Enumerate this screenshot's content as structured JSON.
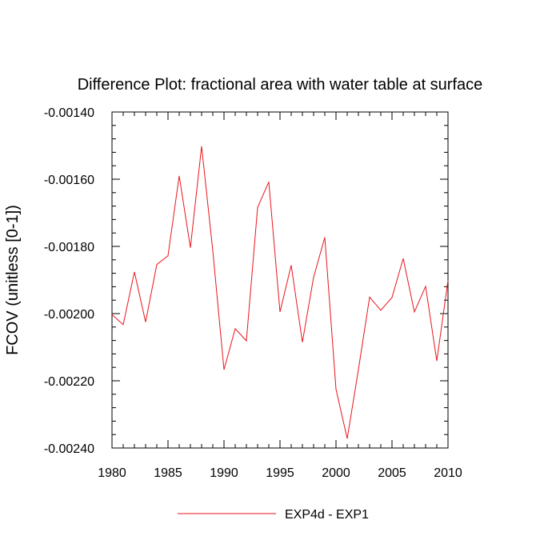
{
  "chart_data": {
    "type": "line",
    "title": "Difference Plot: fractional area with water table at surface",
    "xlabel": "",
    "ylabel": "FCOV  (unitless [0-1])",
    "xlim": [
      1980,
      2010
    ],
    "ylim": [
      -0.0024,
      -0.0014
    ],
    "x_ticks": [
      1980,
      1985,
      1990,
      1995,
      2000,
      2005,
      2010
    ],
    "x_tick_labels": [
      "1980",
      "1985",
      "1990",
      "1995",
      "2000",
      "2005",
      "2010"
    ],
    "y_ticks": [
      -0.0014,
      -0.0016,
      -0.0018,
      -0.002,
      -0.0022,
      -0.0024
    ],
    "y_tick_labels": [
      "-0.00140",
      "-0.00160",
      "-0.00180",
      "-0.00200",
      "-0.00220",
      "-0.00240"
    ],
    "grid": false,
    "legend_position": "bottom-center",
    "series": [
      {
        "name": "EXP4d - EXP1",
        "color": "#e8141c",
        "x": [
          1980,
          1981,
          1982,
          1983,
          1984,
          1985,
          1986,
          1987,
          1988,
          1989,
          1990,
          1991,
          1992,
          1993,
          1994,
          1995,
          1996,
          1997,
          1998,
          1999,
          2000,
          2001,
          2002,
          2003,
          2004,
          2005,
          2006,
          2007,
          2008,
          2009,
          2010
        ],
        "values": [
          -0.002003,
          -0.002033,
          -0.001876,
          -0.002025,
          -0.001854,
          -0.001828,
          -0.00159,
          -0.001804,
          -0.001502,
          -0.001813,
          -0.002167,
          -0.002045,
          -0.002081,
          -0.001684,
          -0.001608,
          -0.001995,
          -0.001856,
          -0.002085,
          -0.001892,
          -0.001773,
          -0.002225,
          -0.002372,
          -0.002167,
          -0.001951,
          -0.00199,
          -0.001952,
          -0.001836,
          -0.001995,
          -0.001919,
          -0.002141,
          -0.001901
        ]
      }
    ]
  }
}
